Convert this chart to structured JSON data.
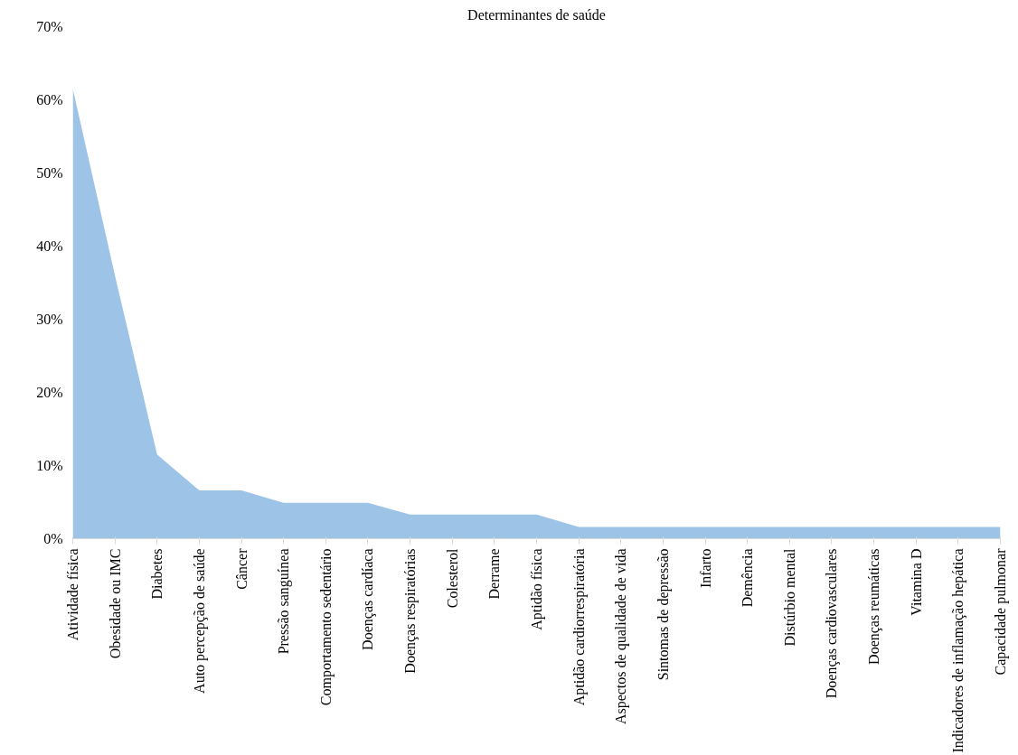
{
  "chart_data": {
    "type": "area",
    "title": "Determinantes de saúde",
    "categories": [
      "Atividade física",
      "Obesidade ou IMC",
      "Diabetes",
      "Auto percepção de saúde",
      "Câncer",
      "Pressão sanguínea",
      "Comportamento sedentário",
      "Doenças cardíaca",
      "Doenças respiratórias",
      "Colesterol",
      "Derrame",
      "Aptidão física",
      "Aptidão cardiorrespiratória",
      "Aspectos de qualidade de vida",
      "Sintomas de depressão",
      "Infarto",
      "Demência",
      "Distúrbio mental",
      "Doenças cardiovasculares",
      "Doenças reumáticas",
      "Vitamina D",
      "Indicadores de inflamação hepática",
      "Capacidade pulmonar"
    ],
    "values": [
      61.5,
      36,
      11.5,
      6.6,
      6.6,
      4.9,
      4.9,
      4.9,
      3.3,
      3.3,
      3.3,
      3.3,
      1.6,
      1.6,
      1.6,
      1.6,
      1.6,
      1.6,
      1.6,
      1.6,
      1.6,
      1.6,
      1.6
    ],
    "color": "#9dc3e6",
    "ylim": [
      0,
      70
    ],
    "yticks": [
      {
        "value": 0,
        "label": "0%"
      },
      {
        "value": 10,
        "label": "10%"
      },
      {
        "value": 20,
        "label": "20%"
      },
      {
        "value": 30,
        "label": "30%"
      },
      {
        "value": 40,
        "label": "40%"
      },
      {
        "value": 50,
        "label": "50%"
      },
      {
        "value": 60,
        "label": "60%"
      },
      {
        "value": 70,
        "label": "70%"
      }
    ],
    "grid": false
  }
}
